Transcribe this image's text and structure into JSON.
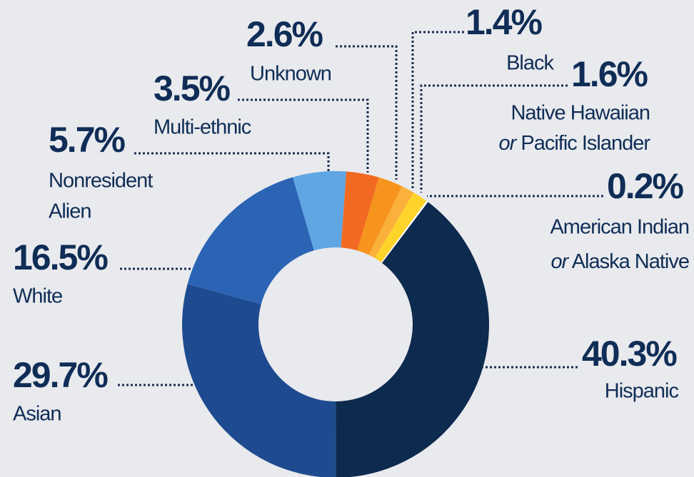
{
  "chart_data": {
    "type": "donut",
    "categories": [
      [
        "Hispanic"
      ],
      [
        "Asian"
      ],
      [
        "White"
      ],
      [
        "Nonresident",
        "Alien"
      ],
      [
        "Multi-ethnic"
      ],
      [
        "Unknown"
      ],
      [
        "Black"
      ],
      [
        "Native Hawaiian",
        "or Pacific Islander"
      ],
      [
        "American Indian",
        "or Alaska Native"
      ]
    ],
    "values": [
      40.3,
      29.7,
      16.5,
      5.7,
      3.5,
      2.6,
      1.4,
      1.6,
      0.2
    ],
    "value_labels": [
      "40.3%",
      "29.7%",
      "16.5%",
      "5.7%",
      "3.5%",
      "2.6%",
      "1.4%",
      "1.6%",
      "0.2%"
    ],
    "colors": [
      "#0d2a4f",
      "#1e4b8f",
      "#2b64b5",
      "#5fa6e2",
      "#f26a21",
      "#f7941d",
      "#fbb03b",
      "#ffd42a",
      "#ffffff"
    ]
  }
}
